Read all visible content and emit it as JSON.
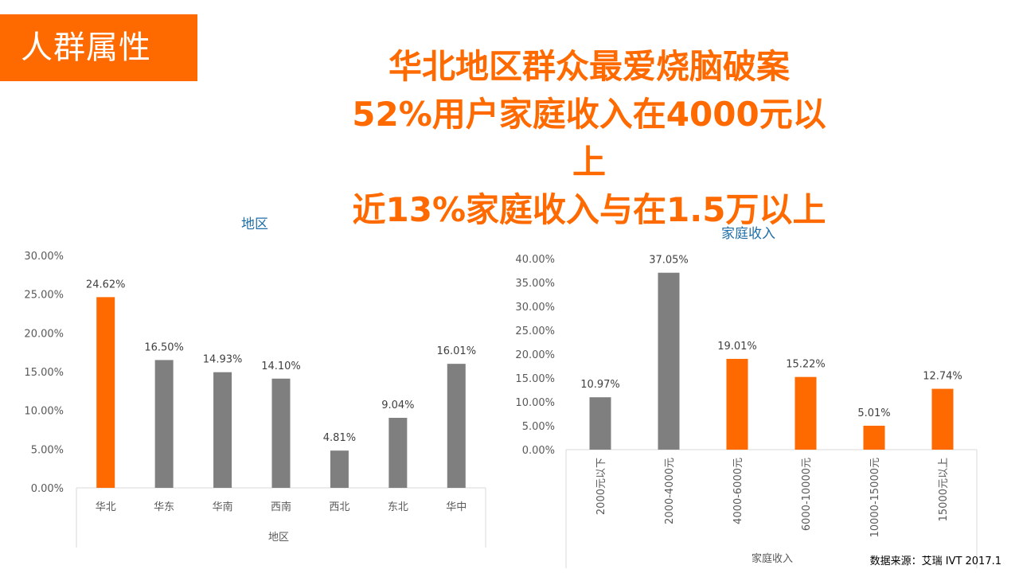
{
  "header": {
    "tag": "人群属性",
    "headline": [
      "华北地区群众最爱烧脑破案",
      "52%用户家庭收入在4000元以",
      "上",
      "近13%家庭收入与在1.5万以上"
    ]
  },
  "colors": {
    "accent": "#ff6a00",
    "bar_gray": "#7f7f7f",
    "title_blue": "#1f6ea8"
  },
  "chart_data": [
    {
      "type": "bar",
      "title": "地区",
      "xlabel": "地区",
      "ylabel": "",
      "ylim": [
        0,
        30
      ],
      "yticks": [
        "0.00%",
        "5.00%",
        "10.00%",
        "15.00%",
        "20.00%",
        "25.00%",
        "30.00%"
      ],
      "categories": [
        "华北",
        "华东",
        "华南",
        "西南",
        "西北",
        "东北",
        "华中"
      ],
      "values": [
        24.62,
        16.5,
        14.93,
        14.1,
        4.81,
        9.04,
        16.01
      ],
      "labels": [
        "24.62%",
        "16.50%",
        "14.93%",
        "14.10%",
        "4.81%",
        "9.04%",
        "16.01%"
      ],
      "highlight": [
        true,
        false,
        false,
        false,
        false,
        false,
        false
      ],
      "grid": false
    },
    {
      "type": "bar",
      "title": "家庭收入",
      "xlabel": "家庭收入",
      "ylabel": "",
      "ylim": [
        0,
        40
      ],
      "yticks": [
        "0.00%",
        "5.00%",
        "10.00%",
        "15.00%",
        "20.00%",
        "25.00%",
        "30.00%",
        "35.00%",
        "40.00%"
      ],
      "categories": [
        "2000元以下",
        "2000-4000元",
        "4000-6000元",
        "6000-10000元",
        "10000-15000元",
        "15000元以上"
      ],
      "values": [
        10.97,
        37.05,
        19.01,
        15.22,
        5.01,
        12.74
      ],
      "labels": [
        "10.97%",
        "37.05%",
        "19.01%",
        "15.22%",
        "5.01%",
        "12.74%"
      ],
      "highlight": [
        false,
        false,
        true,
        true,
        true,
        true
      ],
      "grid": false
    }
  ],
  "footer": {
    "source": "数据来源：艾瑞 IVT  2017.1"
  }
}
